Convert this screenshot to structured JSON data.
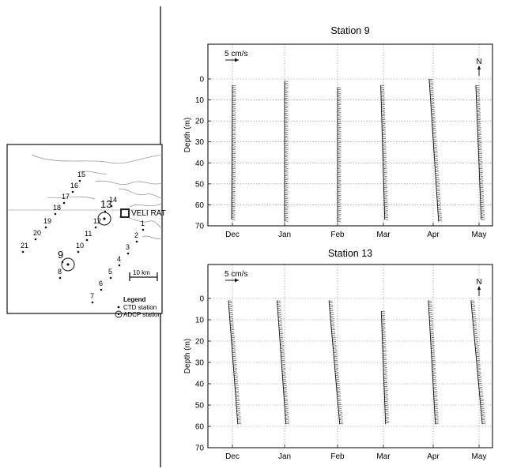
{
  "map": {
    "town_label": "VELI RAT",
    "scale_label": "10 km",
    "legend": {
      "title": "Legend",
      "ctd_label": "CTD station",
      "adcp_label": "ADCP station"
    },
    "ctd_stations": [
      "1",
      "2",
      "3",
      "4",
      "5",
      "6",
      "7",
      "8",
      "9",
      "10",
      "11",
      "12",
      "13",
      "14",
      "15",
      "16",
      "17",
      "18",
      "19",
      "20",
      "21"
    ],
    "adcp_stations": [
      "9",
      "13"
    ]
  },
  "scale_arrow_label": "5 cm/s",
  "north_label": "N",
  "chart_data": [
    {
      "type": "vector-stick",
      "title": "Station 9",
      "ylabel": "Depth (m)",
      "xlabel": "",
      "ylim": [
        70,
        -5
      ],
      "yticks": [
        0,
        10,
        20,
        30,
        40,
        50,
        60,
        70
      ],
      "categories": [
        "Dec",
        "Jan",
        "Feb",
        "Mar",
        "Apr",
        "May"
      ],
      "grid": true,
      "series": [
        {
          "month": "Dec",
          "depth_range": [
            3,
            67
          ],
          "top_offset_cm_s": 0.0,
          "bottom_offset_cm_s": -0.3
        },
        {
          "month": "Jan",
          "depth_range": [
            1,
            68
          ],
          "top_offset_cm_s": 0.0,
          "bottom_offset_cm_s": 0.0
        },
        {
          "month": "Feb",
          "depth_range": [
            4,
            68
          ],
          "top_offset_cm_s": 0.0,
          "bottom_offset_cm_s": 0.0
        },
        {
          "month": "Mar",
          "depth_range": [
            3,
            67
          ],
          "top_offset_cm_s": -1.0,
          "bottom_offset_cm_s": 0.5
        },
        {
          "month": "Apr",
          "depth_range": [
            0,
            68
          ],
          "top_offset_cm_s": -1.5,
          "bottom_offset_cm_s": 2.0
        },
        {
          "month": "May",
          "depth_range": [
            3,
            67
          ],
          "top_offset_cm_s": -1.2,
          "bottom_offset_cm_s": 0.8
        }
      ]
    },
    {
      "type": "vector-stick",
      "title": "Station 13",
      "ylabel": "Depth (m)",
      "xlabel": "",
      "ylim": [
        70,
        -5
      ],
      "yticks": [
        0,
        10,
        20,
        30,
        40,
        50,
        60,
        70
      ],
      "categories": [
        "Dec",
        "Jan",
        "Feb",
        "Mar",
        "Apr",
        "May"
      ],
      "grid": true,
      "series": [
        {
          "month": "Dec",
          "depth_range": [
            1,
            59
          ],
          "top_offset_cm_s": -1.5,
          "bottom_offset_cm_s": 2.0
        },
        {
          "month": "Jan",
          "depth_range": [
            1,
            59
          ],
          "top_offset_cm_s": -2.8,
          "bottom_offset_cm_s": 0.5
        },
        {
          "month": "Feb",
          "depth_range": [
            1,
            59
          ],
          "top_offset_cm_s": -3.2,
          "bottom_offset_cm_s": 0.8
        },
        {
          "month": "Mar",
          "depth_range": [
            6,
            59
          ],
          "top_offset_cm_s": -0.8,
          "bottom_offset_cm_s": 0.8
        },
        {
          "month": "Apr",
          "depth_range": [
            1,
            59
          ],
          "top_offset_cm_s": -1.8,
          "bottom_offset_cm_s": 0.8
        },
        {
          "month": "May",
          "depth_range": [
            1,
            59
          ],
          "top_offset_cm_s": -3.0,
          "bottom_offset_cm_s": 1.2
        }
      ]
    }
  ]
}
